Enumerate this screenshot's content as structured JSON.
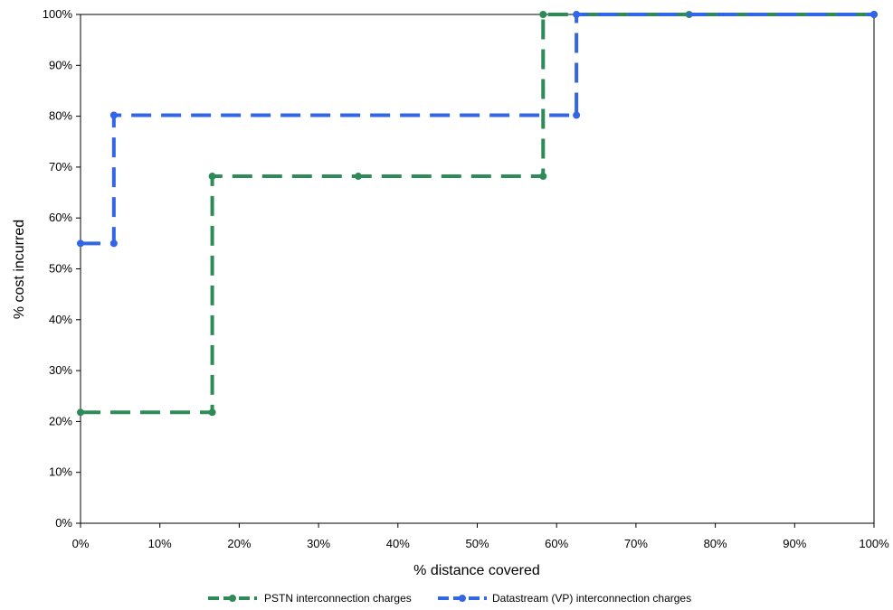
{
  "chart_data": {
    "type": "line",
    "xlabel": "% distance covered",
    "ylabel": "% cost incurred",
    "xlim": [
      0,
      100
    ],
    "ylim": [
      0,
      100
    ],
    "x_ticks": [
      "0%",
      "10%",
      "20%",
      "30%",
      "40%",
      "50%",
      "60%",
      "70%",
      "80%",
      "90%",
      "100%"
    ],
    "y_ticks": [
      "0%",
      "10%",
      "20%",
      "30%",
      "40%",
      "50%",
      "60%",
      "70%",
      "80%",
      "90%",
      "100%"
    ],
    "grid": false,
    "legend_position": "bottom",
    "series": [
      {
        "name": "PSTN interconnection charges",
        "color": "#2e8b57",
        "style": "dashed",
        "points": [
          [
            0,
            21.8
          ],
          [
            16.6,
            21.8
          ],
          [
            16.6,
            68.2
          ],
          [
            35.0,
            68.2
          ],
          [
            58.3,
            68.2
          ],
          [
            58.3,
            100
          ],
          [
            76.7,
            100
          ],
          [
            100,
            100
          ]
        ]
      },
      {
        "name": "Datastream (VP) interconnection charges",
        "color": "#3366e6",
        "style": "dashed",
        "points": [
          [
            0,
            55.0
          ],
          [
            4.2,
            55.0
          ],
          [
            4.2,
            80.2
          ],
          [
            62.5,
            80.2
          ],
          [
            62.5,
            100
          ],
          [
            100,
            100
          ]
        ]
      }
    ]
  }
}
